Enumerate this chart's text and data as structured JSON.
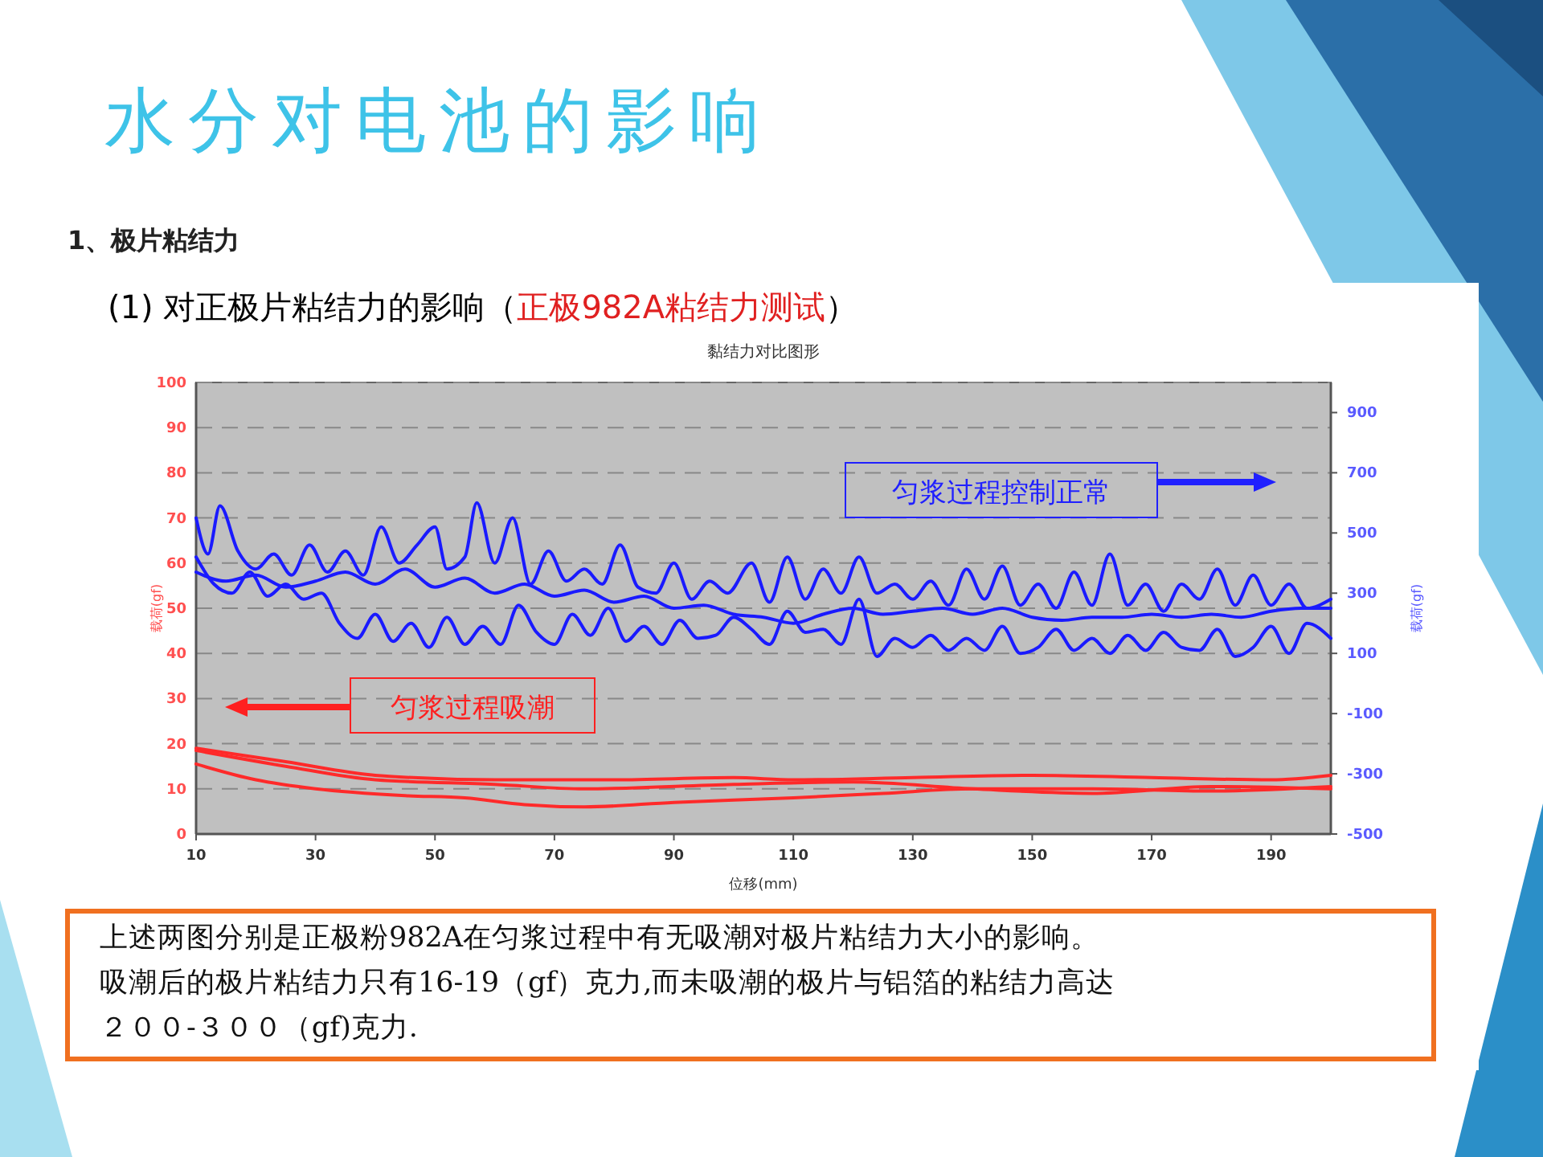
{
  "chart_data": {
    "type": "line",
    "title": "水分对电池的影响",
    "subtitle": "1、极片粘结力",
    "xlabel": "位移(mm)",
    "ylabel": "载荷(gf)",
    "y2label": "载荷(gf)",
    "annotations": [
      "(1) 对正极片粘结力的影响（",
      "正极982A粘结力测试",
      "）",
      "黏结力对比图形",
      "匀浆过程控制正常",
      "匀浆过程吸潮",
      "上述两图分别是正极粉982A在匀浆过程中有无吸潮对极片粘结力大小的影响。",
      "吸潮后的极片粘结力只有16-19（gf）克力,而未吸潮的极片与铝箔的粘结力高达",
      "２００-３００（gf)克力."
    ],
    "xlim": [
      10,
      200
    ],
    "xticks": [
      10,
      30,
      50,
      70,
      90,
      110,
      130,
      150,
      170,
      190
    ],
    "ylim": [
      0,
      100
    ],
    "yticks": [
      0,
      10,
      20,
      30,
      40,
      50,
      60,
      70,
      80,
      90,
      100
    ],
    "y2lim": [
      -500,
      1000
    ],
    "y2ticks": [
      -500,
      -300,
      -100,
      100,
      300,
      500,
      700,
      900
    ],
    "grid": "y",
    "line_style": "solid",
    "series": [
      {
        "color": "#1a1aff",
        "axis": "y2",
        "x": [
          10,
          12,
          14,
          17,
          20,
          23,
          26,
          29,
          32,
          35,
          38,
          41,
          44,
          47,
          50,
          52,
          55,
          57,
          60,
          63,
          66,
          69,
          72,
          75,
          78,
          81,
          84,
          87,
          90,
          93,
          96,
          99,
          103,
          106,
          109,
          112,
          115,
          118,
          121,
          124,
          127,
          130,
          133,
          136,
          139,
          142,
          145,
          148,
          151,
          154,
          157,
          160,
          163,
          166,
          169,
          172,
          175,
          178,
          181,
          184,
          187,
          190,
          193,
          196,
          200
        ],
        "values": [
          550,
          430,
          590,
          440,
          380,
          430,
          360,
          460,
          370,
          440,
          360,
          520,
          400,
          460,
          520,
          380,
          420,
          600,
          400,
          550,
          330,
          440,
          340,
          380,
          330,
          460,
          320,
          300,
          400,
          280,
          340,
          300,
          400,
          270,
          420,
          280,
          380,
          300,
          420,
          300,
          330,
          280,
          340,
          260,
          380,
          280,
          390,
          260,
          330,
          250,
          370,
          260,
          430,
          260,
          330,
          240,
          330,
          280,
          380,
          260,
          360,
          260,
          330,
          250,
          280
        ]
      },
      {
        "color": "#1a1aff",
        "axis": "y2",
        "x": [
          10,
          15,
          20,
          25,
          30,
          35,
          40,
          45,
          50,
          55,
          60,
          65,
          70,
          75,
          80,
          85,
          90,
          95,
          100,
          105,
          110,
          115,
          120,
          125,
          130,
          135,
          140,
          145,
          150,
          155,
          160,
          165,
          170,
          175,
          180,
          185,
          190,
          195,
          200
        ],
        "values": [
          370,
          340,
          360,
          320,
          340,
          370,
          330,
          380,
          320,
          350,
          300,
          330,
          290,
          310,
          270,
          290,
          250,
          260,
          230,
          220,
          200,
          230,
          250,
          230,
          240,
          250,
          230,
          250,
          220,
          210,
          220,
          220,
          230,
          220,
          230,
          220,
          240,
          250,
          250
        ]
      },
      {
        "color": "#1a1aff",
        "axis": "y2",
        "x": [
          10,
          13,
          16,
          19,
          22,
          25,
          28,
          31,
          34,
          37,
          40,
          43,
          46,
          49,
          52,
          55,
          58,
          61,
          64,
          67,
          70,
          73,
          76,
          79,
          82,
          85,
          88,
          91,
          94,
          97,
          100,
          103,
          106,
          109,
          112,
          115,
          118,
          121,
          124,
          127,
          130,
          133,
          136,
          139,
          142,
          145,
          148,
          151,
          154,
          157,
          160,
          163,
          166,
          169,
          172,
          175,
          178,
          181,
          184,
          187,
          190,
          193,
          196,
          200
        ],
        "values": [
          420,
          330,
          300,
          370,
          290,
          330,
          280,
          300,
          200,
          150,
          230,
          140,
          200,
          120,
          220,
          130,
          190,
          130,
          260,
          170,
          130,
          230,
          160,
          250,
          140,
          190,
          130,
          210,
          150,
          160,
          220,
          180,
          130,
          240,
          170,
          180,
          130,
          280,
          90,
          150,
          120,
          160,
          110,
          150,
          110,
          190,
          100,
          120,
          180,
          110,
          150,
          100,
          160,
          110,
          170,
          120,
          110,
          180,
          90,
          120,
          190,
          100,
          200,
          150
        ]
      },
      {
        "color": "#ff2a2a",
        "x": [
          10,
          25,
          40,
          60,
          80,
          100,
          110,
          130,
          150,
          170,
          190,
          200
        ],
        "values": [
          19,
          16,
          13,
          12,
          12,
          12.5,
          12,
          12.5,
          13,
          12.5,
          12,
          13
        ]
      },
      {
        "color": "#ff2a2a",
        "x": [
          10,
          25,
          40,
          60,
          75,
          100,
          120,
          140,
          160,
          180,
          200
        ],
        "values": [
          18.5,
          15,
          12,
          11,
          10,
          11,
          11.5,
          10,
          9,
          10.5,
          10
        ]
      },
      {
        "color": "#ff2a2a",
        "x": [
          10,
          20,
          30,
          45,
          55,
          65,
          75,
          90,
          110,
          125,
          140,
          160,
          180,
          200
        ],
        "values": [
          15.5,
          12,
          10,
          8.5,
          8,
          6.5,
          6,
          7,
          8,
          9,
          10,
          10,
          9.5,
          10.5
        ]
      }
    ]
  }
}
